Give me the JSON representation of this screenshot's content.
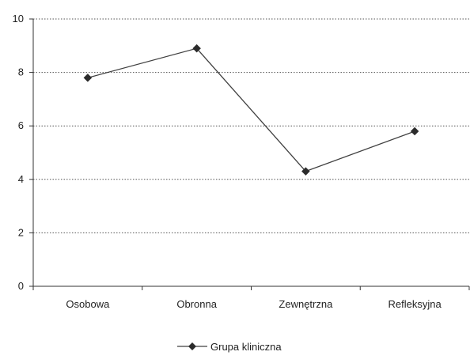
{
  "chart_data": {
    "type": "line",
    "title": "",
    "xlabel": "",
    "ylabel": "",
    "categories": [
      "Osobowa",
      "Obronna",
      "Zewnętrzna",
      "Refleksyjna"
    ],
    "ylim": [
      0,
      10
    ],
    "yticks": [
      0,
      2,
      4,
      6,
      8,
      10
    ],
    "grid": "horizontal-dotted",
    "legend": "bottom",
    "series": [
      {
        "name": "Grupa kliniczna",
        "values": [
          7.8,
          8.9,
          4.3,
          5.8
        ],
        "color": "#404040",
        "marker": "diamond"
      }
    ]
  }
}
